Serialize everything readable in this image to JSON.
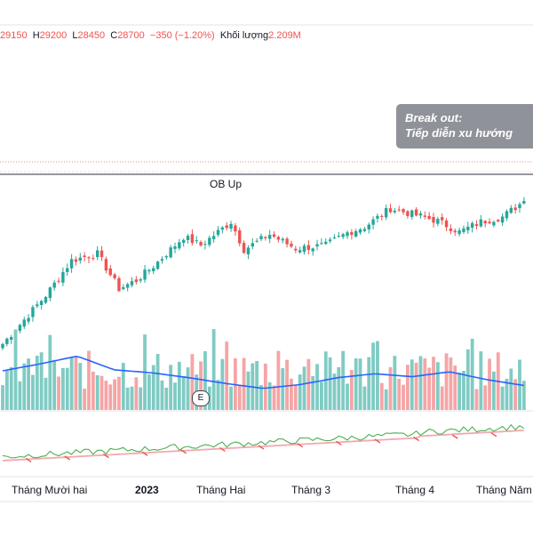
{
  "ohlc": {
    "open": "29150",
    "high_label": "H",
    "high": "29200",
    "low_label": "L",
    "low": "28450",
    "close_label": "C",
    "close": "28700",
    "change": "−350 (−1.20%)",
    "volume_label": "Khối lượng",
    "volume": "2.209M"
  },
  "annotation": {
    "line1": "Break out:",
    "line2": "Tiếp diễn xu hướng"
  },
  "ob_label": "OB Up",
  "event_badge": "E",
  "chart_data": {
    "type": "candlestick",
    "x_labels": [
      "Tháng Mười hai",
      "2023",
      "Tháng Hai",
      "Tháng 3",
      "Tháng 4",
      "Tháng Năm"
    ],
    "anchor_closes": [
      [
        0,
        11200
      ],
      [
        10,
        17000
      ],
      [
        16,
        21200
      ],
      [
        22,
        22000
      ],
      [
        27,
        17800
      ],
      [
        31,
        18800
      ],
      [
        35,
        20500
      ],
      [
        42,
        24000
      ],
      [
        46,
        23000
      ],
      [
        53,
        25800
      ],
      [
        56,
        22500
      ],
      [
        62,
        24300
      ],
      [
        68,
        22600
      ],
      [
        75,
        23000
      ],
      [
        80,
        24500
      ],
      [
        84,
        25200
      ],
      [
        90,
        27400
      ],
      [
        96,
        26600
      ],
      [
        101,
        25900
      ],
      [
        106,
        24600
      ],
      [
        111,
        25800
      ],
      [
        116,
        26400
      ],
      [
        121,
        28300
      ]
    ],
    "volume_ma_levels": [
      0.4,
      0.47,
      0.55,
      0.41,
      0.38,
      0.33,
      0.27,
      0.22,
      0.26,
      0.33,
      0.37,
      0.34,
      0.39,
      0.31,
      0.25
    ],
    "colors": {
      "up": "#26a69a",
      "down": "#ef5350",
      "volume_up": "#80cbc4",
      "volume_down": "#f5a5a5",
      "volume_ma": "#2962ff",
      "osc_line": "#4caf50",
      "osc_signal": "#f3a8b0"
    }
  }
}
